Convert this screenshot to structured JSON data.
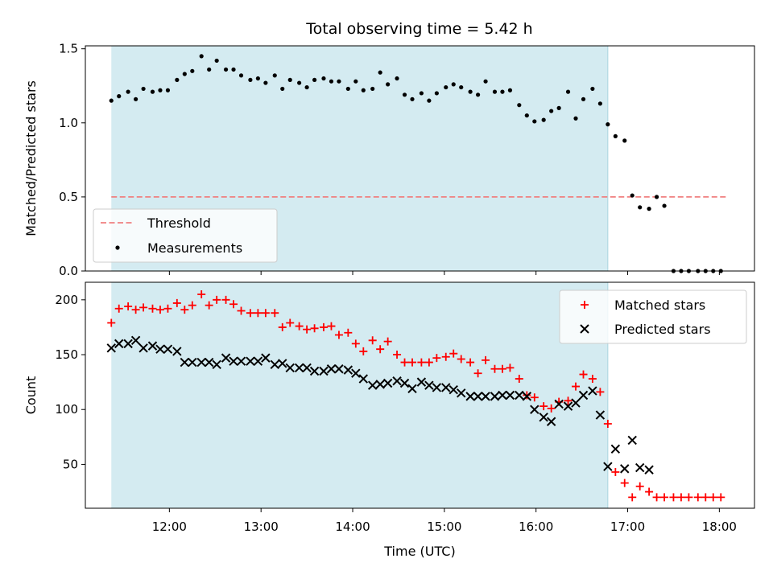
{
  "chart_data": [
    {
      "type": "scatter",
      "title": "Total observing time = 5.42 h",
      "xlabel": "",
      "ylabel": "Matched/Predicted stars",
      "xlim": [
        "11:05",
        "18:23"
      ],
      "ylim": [
        0.0,
        1.52
      ],
      "yticks": [
        0.0,
        0.5,
        1.0,
        1.5
      ],
      "ytick_labels": [
        "0.0",
        "0.5",
        "1.0",
        "1.5"
      ],
      "xticks": [
        "12:00",
        "13:00",
        "14:00",
        "15:00",
        "16:00",
        "17:00",
        "18:00"
      ],
      "show_xtick_labels": false,
      "shaded_span": {
        "start": "11:22",
        "end": "16:47",
        "color": "#d4ebf1"
      },
      "threshold": {
        "name": "Threshold",
        "value": 0.5,
        "x_start": "11:22",
        "x_end": "18:05",
        "color": "#f08080"
      },
      "legend_placement": "lower-left",
      "series": [
        {
          "name": "Measurements",
          "color": "#000000",
          "marker": "dot",
          "x": [
            "11:22",
            "11:27",
            "11:33",
            "11:38",
            "11:43",
            "11:49",
            "11:54",
            "11:59",
            "12:05",
            "12:10",
            "12:15",
            "12:21",
            "12:26",
            "12:31",
            "12:37",
            "12:42",
            "12:47",
            "12:53",
            "12:58",
            "13:03",
            "13:09",
            "13:14",
            "13:19",
            "13:25",
            "13:30",
            "13:35",
            "13:41",
            "13:46",
            "13:51",
            "13:57",
            "14:02",
            "14:07",
            "14:13",
            "14:18",
            "14:23",
            "14:29",
            "14:34",
            "14:39",
            "14:45",
            "14:50",
            "14:55",
            "15:01",
            "15:06",
            "15:11",
            "15:17",
            "15:22",
            "15:27",
            "15:33",
            "15:38",
            "15:43",
            "15:49",
            "15:54",
            "15:59",
            "16:05",
            "16:10",
            "16:15",
            "16:21",
            "16:26",
            "16:31",
            "16:37",
            "16:42",
            "16:47",
            "16:52",
            "16:58",
            "17:03",
            "17:08",
            "17:14",
            "17:19",
            "17:24",
            "17:30",
            "17:35",
            "17:40",
            "17:46",
            "17:51",
            "17:56",
            "18:01"
          ],
          "y": [
            1.15,
            1.18,
            1.21,
            1.16,
            1.23,
            1.21,
            1.22,
            1.22,
            1.29,
            1.33,
            1.35,
            1.45,
            1.36,
            1.42,
            1.36,
            1.36,
            1.32,
            1.29,
            1.3,
            1.27,
            1.32,
            1.23,
            1.29,
            1.27,
            1.24,
            1.29,
            1.3,
            1.28,
            1.28,
            1.23,
            1.28,
            1.22,
            1.23,
            1.34,
            1.26,
            1.3,
            1.19,
            1.16,
            1.2,
            1.15,
            1.2,
            1.24,
            1.26,
            1.24,
            1.21,
            1.19,
            1.28,
            1.21,
            1.21,
            1.22,
            1.12,
            1.05,
            1.01,
            1.02,
            1.08,
            1.1,
            1.21,
            1.03,
            1.16,
            1.23,
            1.13,
            0.99,
            0.91,
            0.88,
            0.51,
            0.43,
            0.42,
            0.5,
            0.44,
            0.0,
            0.0,
            0.0,
            0.0,
            0.0,
            0.0,
            0.0
          ]
        }
      ]
    },
    {
      "type": "scatter",
      "title": "",
      "xlabel": "Time (UTC)",
      "ylabel": "Count",
      "xlim": [
        "11:05",
        "18:23"
      ],
      "ylim": [
        10,
        216
      ],
      "yticks": [
        50,
        100,
        150,
        200
      ],
      "ytick_labels": [
        "50",
        "100",
        "150",
        "200"
      ],
      "xticks": [
        "12:00",
        "13:00",
        "14:00",
        "15:00",
        "16:00",
        "17:00",
        "18:00"
      ],
      "xtick_labels": [
        "12:00",
        "13:00",
        "14:00",
        "15:00",
        "16:00",
        "17:00",
        "18:00"
      ],
      "show_xtick_labels": true,
      "shaded_span": {
        "start": "11:22",
        "end": "16:47",
        "color": "#d4ebf1"
      },
      "legend_placement": "upper-right",
      "series": [
        {
          "name": "Matched stars",
          "color": "#ff0000",
          "marker": "plus",
          "x": [
            "11:22",
            "11:27",
            "11:33",
            "11:38",
            "11:43",
            "11:49",
            "11:54",
            "11:59",
            "12:05",
            "12:10",
            "12:15",
            "12:21",
            "12:26",
            "12:31",
            "12:37",
            "12:42",
            "12:47",
            "12:53",
            "12:58",
            "13:03",
            "13:09",
            "13:14",
            "13:19",
            "13:25",
            "13:30",
            "13:35",
            "13:41",
            "13:46",
            "13:51",
            "13:57",
            "14:02",
            "14:07",
            "14:13",
            "14:18",
            "14:23",
            "14:29",
            "14:34",
            "14:39",
            "14:45",
            "14:50",
            "14:55",
            "15:01",
            "15:06",
            "15:11",
            "15:17",
            "15:22",
            "15:27",
            "15:33",
            "15:38",
            "15:43",
            "15:49",
            "15:54",
            "15:59",
            "16:05",
            "16:10",
            "16:15",
            "16:21",
            "16:26",
            "16:31",
            "16:37",
            "16:42",
            "16:47",
            "16:52",
            "16:58",
            "17:03",
            "17:08",
            "17:14",
            "17:19",
            "17:24",
            "17:30",
            "17:35",
            "17:40",
            "17:46",
            "17:51",
            "17:56",
            "18:01"
          ],
          "y": [
            179,
            192,
            194,
            191,
            193,
            192,
            191,
            192,
            197,
            191,
            195,
            205,
            195,
            200,
            200,
            196,
            190,
            188,
            188,
            188,
            188,
            175,
            179,
            176,
            173,
            174,
            175,
            176,
            168,
            170,
            160,
            153,
            163,
            155,
            162,
            150,
            143,
            143,
            143,
            143,
            147,
            148,
            151,
            146,
            143,
            133,
            145,
            137,
            137,
            138,
            128,
            113,
            111,
            103,
            101,
            107,
            108,
            121,
            132,
            128,
            116,
            87,
            43,
            33,
            20,
            30,
            25,
            20,
            20,
            20,
            20,
            20,
            20,
            20,
            20,
            20
          ]
        },
        {
          "name": "Predicted stars",
          "color": "#000000",
          "marker": "x",
          "x": [
            "11:22",
            "11:27",
            "11:33",
            "11:38",
            "11:43",
            "11:49",
            "11:54",
            "11:59",
            "12:05",
            "12:10",
            "12:15",
            "12:21",
            "12:26",
            "12:31",
            "12:37",
            "12:42",
            "12:47",
            "12:53",
            "12:58",
            "13:03",
            "13:09",
            "13:14",
            "13:19",
            "13:25",
            "13:30",
            "13:35",
            "13:41",
            "13:46",
            "13:51",
            "13:57",
            "14:02",
            "14:07",
            "14:13",
            "14:18",
            "14:23",
            "14:29",
            "14:34",
            "14:39",
            "14:45",
            "14:50",
            "14:55",
            "15:01",
            "15:06",
            "15:11",
            "15:17",
            "15:22",
            "15:27",
            "15:33",
            "15:38",
            "15:43",
            "15:49",
            "15:54",
            "15:59",
            "16:05",
            "16:10",
            "16:15",
            "16:21",
            "16:26",
            "16:31",
            "16:37",
            "16:42",
            "16:47",
            "16:52",
            "16:58",
            "17:03",
            "17:08",
            "17:14"
          ],
          "y": [
            156,
            160,
            160,
            163,
            156,
            158,
            155,
            155,
            153,
            143,
            143,
            143,
            143,
            141,
            147,
            144,
            144,
            144,
            144,
            147,
            141,
            142,
            138,
            138,
            138,
            135,
            135,
            137,
            137,
            136,
            133,
            128,
            122,
            123,
            124,
            126,
            124,
            119,
            125,
            122,
            120,
            120,
            118,
            115,
            112,
            112,
            112,
            112,
            113,
            113,
            113,
            112,
            100,
            93,
            89,
            105,
            103,
            106,
            113,
            117,
            95,
            48,
            64,
            46,
            72,
            47,
            45
          ]
        }
      ]
    }
  ]
}
